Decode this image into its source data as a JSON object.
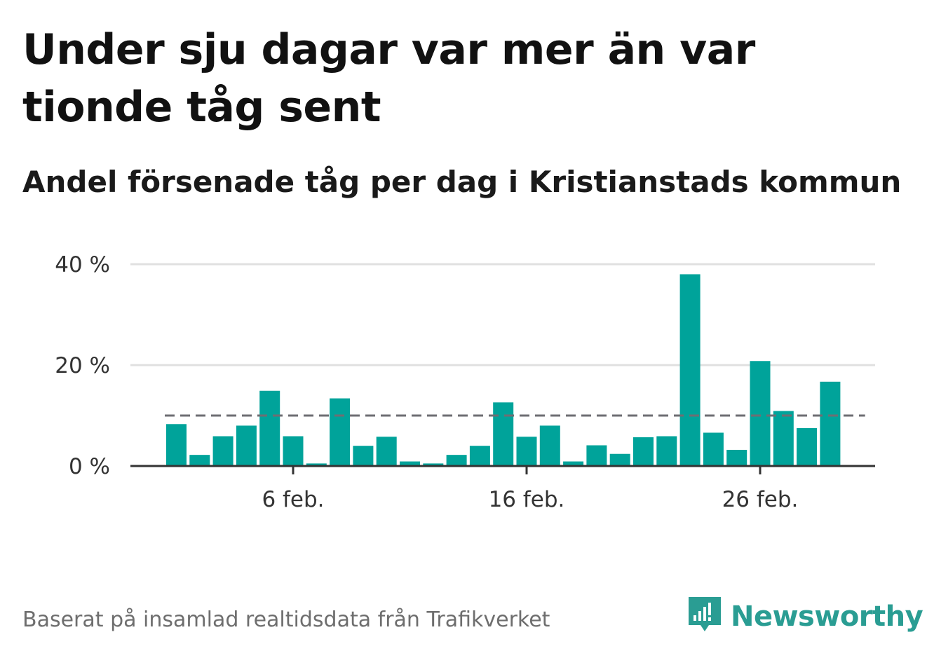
{
  "title": "Under sju dagar var mer än var tionde tåg sent",
  "subtitle": "Andel försenade tåg per dag i Kristianstads kommun",
  "footer": {
    "source": "Baserat på insamlad realtidsdata från Trafikverket"
  },
  "brand": {
    "name": "Newsworthy",
    "icon": "newsworthy-logo-icon",
    "color": "#2a9d93"
  },
  "colors": {
    "bar": "#00a39a",
    "reference_line": "#6e6e73",
    "grid": "#e0e0e0",
    "axis": "#333333"
  },
  "chart_data": {
    "type": "bar",
    "categories": [
      "1 feb.",
      "2 feb.",
      "3 feb.",
      "4 feb.",
      "5 feb.",
      "6 feb.",
      "7 feb.",
      "8 feb.",
      "9 feb.",
      "10 feb.",
      "11 feb.",
      "12 feb.",
      "13 feb.",
      "14 feb.",
      "15 feb.",
      "16 feb.",
      "17 feb.",
      "18 feb.",
      "19 feb.",
      "20 feb.",
      "21 feb.",
      "22 feb.",
      "23 feb.",
      "24 feb.",
      "25 feb.",
      "26 feb.",
      "27 feb.",
      "28 feb.",
      "1 mar.",
      "2 mar."
    ],
    "values": [
      8.3,
      2.2,
      5.9,
      8.0,
      14.9,
      5.9,
      0.5,
      13.4,
      4.0,
      5.8,
      0.9,
      0.5,
      2.2,
      4.0,
      12.6,
      5.8,
      8.0,
      0.9,
      4.1,
      2.4,
      5.7,
      5.9,
      38.0,
      6.6,
      3.2,
      20.8,
      10.9,
      7.5,
      16.7,
      0
    ],
    "ylim": [
      0,
      40
    ],
    "yticks": [
      {
        "value": 0,
        "label": "0 %"
      },
      {
        "value": 20,
        "label": "20 %"
      },
      {
        "value": 40,
        "label": "40 %"
      }
    ],
    "xticks": [
      {
        "index": 5,
        "label": "6 feb."
      },
      {
        "index": 15,
        "label": "16 feb."
      },
      {
        "index": 25,
        "label": "26 feb."
      }
    ],
    "reference_line": 10,
    "grid": true,
    "xlabel": "",
    "ylabel": ""
  }
}
